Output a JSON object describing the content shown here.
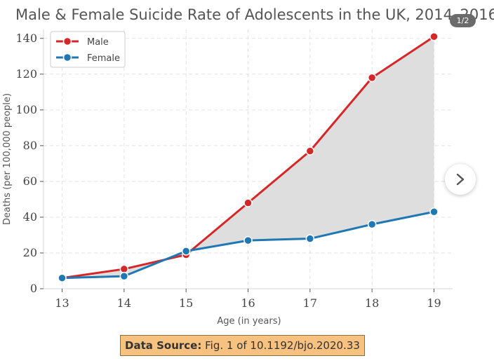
{
  "pager": {
    "label": "1/2"
  },
  "source": {
    "label": "Data Source:",
    "text": "Fig. 1 of 10.1192/bjo.2020.33"
  },
  "icons": {
    "next": "chevron-right-icon"
  },
  "chart_data": {
    "type": "line",
    "title": "Male & Female Suicide Rate of Adolescents in the UK, 2014–2016",
    "xlabel": "Age (in years)",
    "ylabel": "Deaths (per 100,000 people)",
    "x": [
      13,
      14,
      15,
      16,
      17,
      18,
      19
    ],
    "xlim": [
      12.7,
      19.3
    ],
    "ylim": [
      0,
      145
    ],
    "xticks": [
      13,
      14,
      15,
      16,
      17,
      18,
      19
    ],
    "yticks": [
      0,
      20,
      40,
      60,
      80,
      100,
      120,
      140
    ],
    "grid": true,
    "legend_position": "top-left",
    "fill_between_series": true,
    "fill_color": "#dcdcdc",
    "series": [
      {
        "name": "Male",
        "color": "#d62728",
        "values": [
          6,
          11,
          19,
          48,
          77,
          118,
          141
        ]
      },
      {
        "name": "Female",
        "color": "#1f77b4",
        "values": [
          6,
          7,
          21,
          27,
          28,
          36,
          43
        ]
      }
    ]
  }
}
